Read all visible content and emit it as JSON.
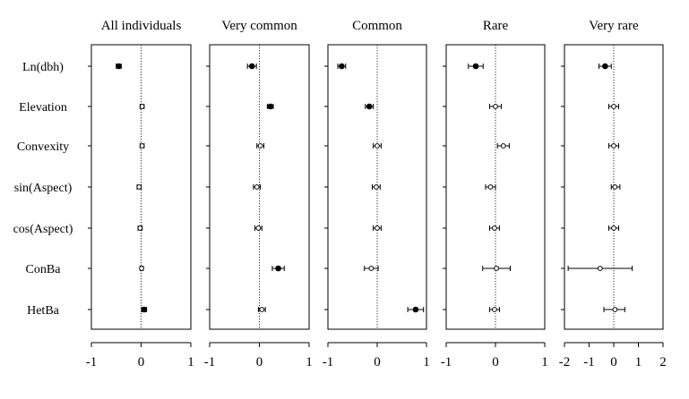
{
  "chart_data": {
    "type": "scatter",
    "row_labels": [
      "Ln(dbh)",
      "Elevation",
      "Convexity",
      "sin(Aspect)",
      "cos(Aspect)",
      "ConBa",
      "HetBa"
    ],
    "panels": [
      {
        "title": "All individuals",
        "xlim": [
          -1,
          1
        ],
        "ticks": [
          "-1",
          "0",
          "1"
        ],
        "estimates": [
          {
            "row": "Ln(dbh)",
            "est": -0.45,
            "lo": -0.5,
            "hi": -0.4,
            "filled": true
          },
          {
            "row": "Elevation",
            "est": 0.02,
            "lo": -0.02,
            "hi": 0.06,
            "filled": false
          },
          {
            "row": "Convexity",
            "est": 0.02,
            "lo": -0.02,
            "hi": 0.06,
            "filled": false
          },
          {
            "row": "sin(Aspect)",
            "est": -0.04,
            "lo": -0.08,
            "hi": 0.0,
            "filled": false
          },
          {
            "row": "cos(Aspect)",
            "est": -0.02,
            "lo": -0.06,
            "hi": 0.02,
            "filled": false
          },
          {
            "row": "ConBa",
            "est": 0.01,
            "lo": -0.02,
            "hi": 0.04,
            "filled": false
          },
          {
            "row": "HetBa",
            "est": 0.06,
            "lo": 0.01,
            "hi": 0.11,
            "filled": true
          }
        ]
      },
      {
        "title": "Very common",
        "xlim": [
          -1,
          1
        ],
        "ticks": [
          "-1",
          "0",
          "1"
        ],
        "estimates": [
          {
            "row": "Ln(dbh)",
            "est": -0.15,
            "lo": -0.24,
            "hi": -0.06,
            "filled": true
          },
          {
            "row": "Elevation",
            "est": 0.22,
            "lo": 0.16,
            "hi": 0.28,
            "filled": true
          },
          {
            "row": "Convexity",
            "est": 0.02,
            "lo": -0.05,
            "hi": 0.09,
            "filled": false
          },
          {
            "row": "sin(Aspect)",
            "est": -0.05,
            "lo": -0.12,
            "hi": 0.02,
            "filled": false
          },
          {
            "row": "cos(Aspect)",
            "est": -0.02,
            "lo": -0.09,
            "hi": 0.05,
            "filled": false
          },
          {
            "row": "ConBa",
            "est": 0.38,
            "lo": 0.26,
            "hi": 0.5,
            "filled": true
          },
          {
            "row": "HetBa",
            "est": 0.05,
            "lo": -0.02,
            "hi": 0.12,
            "filled": false
          }
        ]
      },
      {
        "title": "Common",
        "xlim": [
          -1,
          1
        ],
        "ticks": [
          "-1",
          "0",
          "1"
        ],
        "estimates": [
          {
            "row": "Ln(dbh)",
            "est": -0.72,
            "lo": -0.8,
            "hi": -0.64,
            "filled": true
          },
          {
            "row": "Elevation",
            "est": -0.16,
            "lo": -0.24,
            "hi": -0.08,
            "filled": true
          },
          {
            "row": "Convexity",
            "est": 0.0,
            "lo": -0.08,
            "hi": 0.08,
            "filled": false
          },
          {
            "row": "sin(Aspect)",
            "est": -0.02,
            "lo": -0.1,
            "hi": 0.06,
            "filled": false
          },
          {
            "row": "cos(Aspect)",
            "est": 0.0,
            "lo": -0.08,
            "hi": 0.08,
            "filled": false
          },
          {
            "row": "ConBa",
            "est": -0.12,
            "lo": -0.26,
            "hi": 0.02,
            "filled": false
          },
          {
            "row": "HetBa",
            "est": 0.78,
            "lo": 0.62,
            "hi": 0.94,
            "filled": true
          }
        ]
      },
      {
        "title": "Rare",
        "xlim": [
          -1,
          1
        ],
        "ticks": [
          "-1",
          "0",
          "1"
        ],
        "estimates": [
          {
            "row": "Ln(dbh)",
            "est": -0.4,
            "lo": -0.55,
            "hi": -0.25,
            "filled": true
          },
          {
            "row": "Elevation",
            "est": 0.0,
            "lo": -0.12,
            "hi": 0.12,
            "filled": false
          },
          {
            "row": "Convexity",
            "est": 0.16,
            "lo": 0.04,
            "hi": 0.28,
            "filled": false
          },
          {
            "row": "sin(Aspect)",
            "est": -0.1,
            "lo": -0.2,
            "hi": 0.0,
            "filled": false
          },
          {
            "row": "cos(Aspect)",
            "est": -0.02,
            "lo": -0.12,
            "hi": 0.08,
            "filled": false
          },
          {
            "row": "ConBa",
            "est": 0.02,
            "lo": -0.26,
            "hi": 0.3,
            "filled": false
          },
          {
            "row": "HetBa",
            "est": -0.02,
            "lo": -0.12,
            "hi": 0.08,
            "filled": false
          }
        ]
      },
      {
        "title": "Very rare",
        "xlim": [
          -2,
          2
        ],
        "ticks": [
          "-2",
          "-1",
          "0",
          "1",
          "2"
        ],
        "estimates": [
          {
            "row": "Ln(dbh)",
            "est": -0.35,
            "lo": -0.6,
            "hi": -0.1,
            "filled": true
          },
          {
            "row": "Elevation",
            "est": 0.0,
            "lo": -0.2,
            "hi": 0.2,
            "filled": false
          },
          {
            "row": "Convexity",
            "est": 0.0,
            "lo": -0.2,
            "hi": 0.2,
            "filled": false
          },
          {
            "row": "sin(Aspect)",
            "est": 0.05,
            "lo": -0.1,
            "hi": 0.25,
            "filled": false
          },
          {
            "row": "cos(Aspect)",
            "est": 0.0,
            "lo": -0.2,
            "hi": 0.2,
            "filled": false
          },
          {
            "row": "ConBa",
            "est": -0.55,
            "lo": -1.85,
            "hi": 0.75,
            "filled": false
          },
          {
            "row": "HetBa",
            "est": 0.05,
            "lo": -0.4,
            "hi": 0.45,
            "filled": false
          }
        ]
      }
    ]
  }
}
